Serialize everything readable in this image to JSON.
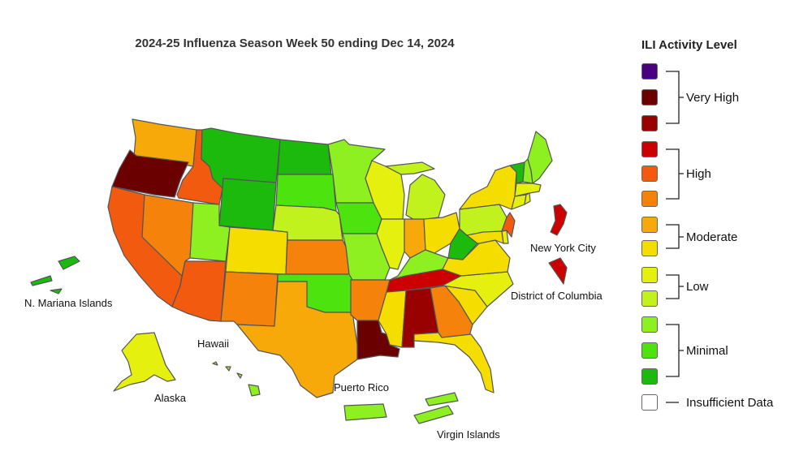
{
  "title": "2024-25 Influenza Season Week 50 ending Dec 14, 2024",
  "legend": {
    "title": "ILI Activity Level",
    "groups": [
      "Very High",
      "High",
      "Moderate",
      "Low",
      "Minimal",
      "Insufficient Data"
    ],
    "levels": [
      {
        "level": 13,
        "color": "#4b0082"
      },
      {
        "level": 12,
        "color": "#6b0000"
      },
      {
        "level": 11,
        "color": "#990000"
      },
      {
        "level": 10,
        "color": "#cc0000"
      },
      {
        "level": 9,
        "color": "#f25a10"
      },
      {
        "level": 8,
        "color": "#f5820a"
      },
      {
        "level": 7,
        "color": "#f7a90a"
      },
      {
        "level": 6,
        "color": "#f5dd00"
      },
      {
        "level": 5,
        "color": "#e5f00f"
      },
      {
        "level": 4,
        "color": "#c2f21e"
      },
      {
        "level": 3,
        "color": "#8ef020"
      },
      {
        "level": 2,
        "color": "#4ce30f"
      },
      {
        "level": 1,
        "color": "#1cba0c"
      },
      {
        "level": 0,
        "color": "#ffffff"
      }
    ]
  },
  "region_labels": {
    "new_york_city": "New York City",
    "district_of_columbia": "District of Columbia",
    "n_mariana_islands": "N. Mariana Islands",
    "hawaii": "Hawaii",
    "alaska": "Alaska",
    "puerto_rico": "Puerto Rico",
    "virgin_islands": "Virgin Islands"
  },
  "activity_levels": {
    "WA": 7,
    "OR": 12,
    "CA": 9,
    "ID": 9,
    "NV": 8,
    "AZ": 9,
    "UT": 3,
    "MT": 1,
    "WY": 1,
    "CO": 6,
    "NM": 8,
    "ND": 1,
    "SD": 2,
    "NE": 4,
    "KS": 8,
    "OK": 2,
    "TX": 7,
    "MN": 3,
    "IA": 2,
    "MO": 3,
    "AR": 8,
    "LA": 12,
    "WI": 5,
    "IL": 5,
    "MI": 4,
    "IN": 7,
    "OH": 6,
    "KY": 3,
    "TN": 10,
    "MS": 6,
    "AL": 11,
    "GA": 8,
    "FL": 6,
    "SC": 6,
    "NC": 5,
    "VA": 6,
    "WV": 1,
    "PA": 4,
    "NY": 6,
    "VT": 1,
    "NH": 3,
    "ME": 3,
    "MA": 5,
    "CT": 5,
    "RI": 5,
    "NJ": 9,
    "DE": 5,
    "MD": 6,
    "AK": 5,
    "HI": 3,
    "PR": 3,
    "VI": 3,
    "MP": 1,
    "NYC": 10,
    "DC": 10
  }
}
